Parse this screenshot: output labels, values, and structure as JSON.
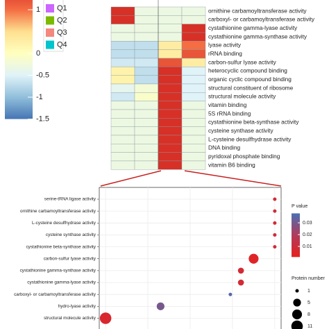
{
  "chart_data": [
    {
      "type": "heatmap",
      "columns": [
        "Q1",
        "Q2",
        "Q3",
        "Q4"
      ],
      "column_colors": [
        "#cc66ff",
        "#7cba00",
        "#f4877e",
        "#00c5cd"
      ],
      "rows": [
        "ornithine carbamoyltransferase activity",
        "carboxyl- or carbamoyltransferase activity",
        "cystathionine gamma-lyase activity",
        "cystathionine gamma-synthase activity",
        "lyase activity",
        "rRNA binding",
        "carbon-sulfur lyase activity",
        "heterocyclic compound binding",
        "organic cyclic compound binding",
        "structural constituent of ribosome",
        "structural molecule activity",
        "vitamin binding",
        "5S rRNA binding",
        "cystathionine beta-synthase activity",
        "cysteine synthase activity",
        "L-cysteine desulfhydrase activity",
        "DNA binding",
        "pyridoxal phosphate binding",
        "vitamin B6 binding"
      ],
      "values": [
        [
          1.5,
          -0.3,
          -0.3,
          -0.3
        ],
        [
          1.5,
          -0.3,
          -0.3,
          -0.3
        ],
        [
          -0.3,
          -0.3,
          -0.3,
          1.5
        ],
        [
          -0.3,
          -0.3,
          -0.3,
          1.5
        ],
        [
          -0.7,
          -0.7,
          0.3,
          1.0
        ],
        [
          -0.7,
          -0.7,
          0.3,
          1.2
        ],
        [
          -0.6,
          -0.6,
          1.2,
          0.3
        ],
        [
          0.2,
          -0.7,
          1.5,
          -0.5
        ],
        [
          0.2,
          -0.7,
          1.5,
          -0.5
        ],
        [
          -0.4,
          -0.2,
          1.5,
          -0.5
        ],
        [
          -0.6,
          -0.1,
          1.5,
          -0.5
        ],
        [
          -0.3,
          -0.3,
          1.5,
          -0.3
        ],
        [
          -0.3,
          -0.3,
          1.5,
          -0.3
        ],
        [
          -0.3,
          -0.3,
          1.5,
          -0.3
        ],
        [
          -0.3,
          -0.3,
          1.5,
          -0.3
        ],
        [
          -0.3,
          -0.3,
          1.5,
          -0.3
        ],
        [
          -0.3,
          -0.3,
          1.5,
          -0.3
        ],
        [
          -0.3,
          -0.3,
          1.5,
          -0.3
        ],
        [
          -0.3,
          -0.3,
          1.5,
          -0.3
        ]
      ],
      "clim": [
        -1.5,
        1.5
      ],
      "colorscale": [
        "#4575b4",
        "#91bfdb",
        "#e0f3f8",
        "#ffffbf",
        "#fee090",
        "#f46d43",
        "#d73027"
      ],
      "cticks": [
        1,
        0,
        -0.5,
        -1,
        -1.5
      ]
    },
    {
      "type": "dotplot",
      "categories": [
        "serine-tRNA ligase activity",
        "ornithine carbamoyltransferase activity",
        "L-cysteine desulfhydrase activity",
        "cysteine synthase activity",
        "cystathionine beta-synthase activity",
        "carbon-sulfur lyase activity",
        "cystathionine gamma-synthase activity",
        "cystathionine gamma-lyase activity",
        "carboxyl- or carbamoyltransferase activity",
        "hydro-lyase activity",
        "structural molecule activity"
      ],
      "x": [
        4.0,
        4.0,
        4.0,
        4.0,
        4.0,
        3.5,
        3.2,
        3.2,
        2.95,
        1.3,
        0.0
      ],
      "size": [
        1,
        1,
        1,
        1,
        1,
        8,
        3,
        3,
        1,
        5,
        11
      ],
      "pvalue": [
        0.008,
        0.009,
        0.009,
        0.009,
        0.009,
        0.004,
        0.008,
        0.008,
        0.036,
        0.03,
        0.006
      ],
      "xlim": [
        -0.15,
        4.15
      ],
      "color_title": "P value",
      "clim": [
        0.001,
        0.038
      ],
      "colorscale": [
        "#e8201e",
        "#b03a5a",
        "#4a6fb5"
      ],
      "cticks": [
        0.03,
        0.02,
        0.01
      ],
      "size_title": "Protein number",
      "size_ticks": [
        1,
        5,
        8,
        11
      ]
    }
  ]
}
